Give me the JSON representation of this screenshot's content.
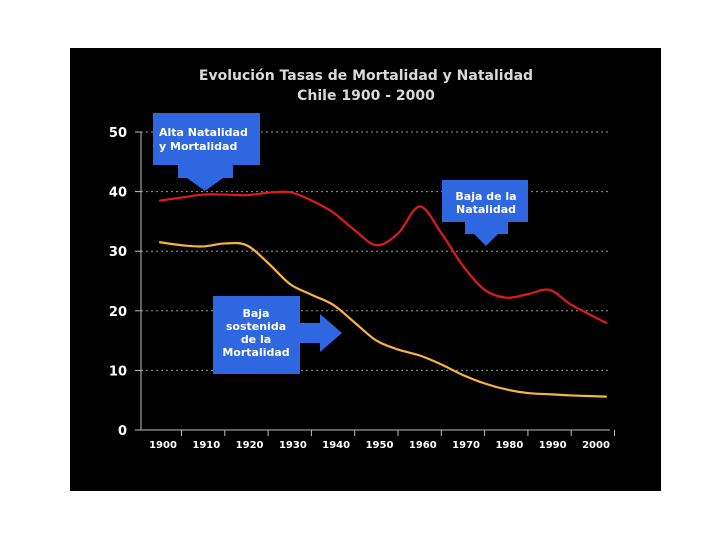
{
  "chart_data": {
    "type": "line",
    "title": "Evolución Tasas de Mortalidad y Natalidad",
    "subtitle": "Chile 1900 - 2000",
    "xlabel": "",
    "ylabel": "",
    "xlim": [
      1900,
      2000
    ],
    "ylim": [
      0,
      50
    ],
    "x_ticks": [
      "1900",
      "1910",
      "1920",
      "1930",
      "1940",
      "1950",
      "1960",
      "1970",
      "1980",
      "1990",
      "2000"
    ],
    "y_ticks": [
      "0",
      "10",
      "20",
      "30",
      "40",
      "50"
    ],
    "y_tick_values": [
      0,
      10,
      20,
      30,
      40,
      50
    ],
    "series": [
      {
        "name": "Natalidad",
        "color": "#e01b1b",
        "x": [
          1900,
          1905,
          1910,
          1915,
          1920,
          1925,
          1930,
          1935,
          1940,
          1945,
          1950,
          1955,
          1960,
          1965,
          1970,
          1975,
          1980,
          1985,
          1990,
          1995,
          2003
        ],
        "values": [
          38.5,
          39,
          39.5,
          39.5,
          39.4,
          39.8,
          39.9,
          38.5,
          36.5,
          33.5,
          31,
          33,
          37.5,
          33,
          27.5,
          23.5,
          22.2,
          22.8,
          23.5,
          21,
          18
        ]
      },
      {
        "name": "Mortalidad",
        "color": "#f5b53f",
        "x": [
          1900,
          1905,
          1910,
          1915,
          1920,
          1925,
          1930,
          1935,
          1940,
          1945,
          1950,
          1955,
          1960,
          1965,
          1970,
          1975,
          1980,
          1985,
          1990,
          1995,
          2003
        ],
        "values": [
          31.5,
          31,
          30.8,
          31.3,
          31,
          28,
          24.5,
          22.7,
          21,
          18,
          15,
          13.5,
          12.5,
          11,
          9.2,
          7.8,
          6.8,
          6.2,
          6.0,
          5.8,
          5.6
        ]
      }
    ],
    "annotations": [
      {
        "id": "alta",
        "lines": [
          "Alta Natalidad",
          "y  Mortalidad"
        ],
        "arrow": "down"
      },
      {
        "id": "baja-natalidad",
        "lines": [
          "Baja de la",
          "Natalidad"
        ],
        "arrow": "down"
      },
      {
        "id": "baja-mortalidad",
        "lines": [
          "Baja",
          "sostenida",
          "de la",
          "Mortalidad"
        ],
        "arrow": "right"
      }
    ],
    "colors": {
      "background": "#000000",
      "callout": "#2e67df",
      "callout_text": "#ffffff"
    }
  }
}
